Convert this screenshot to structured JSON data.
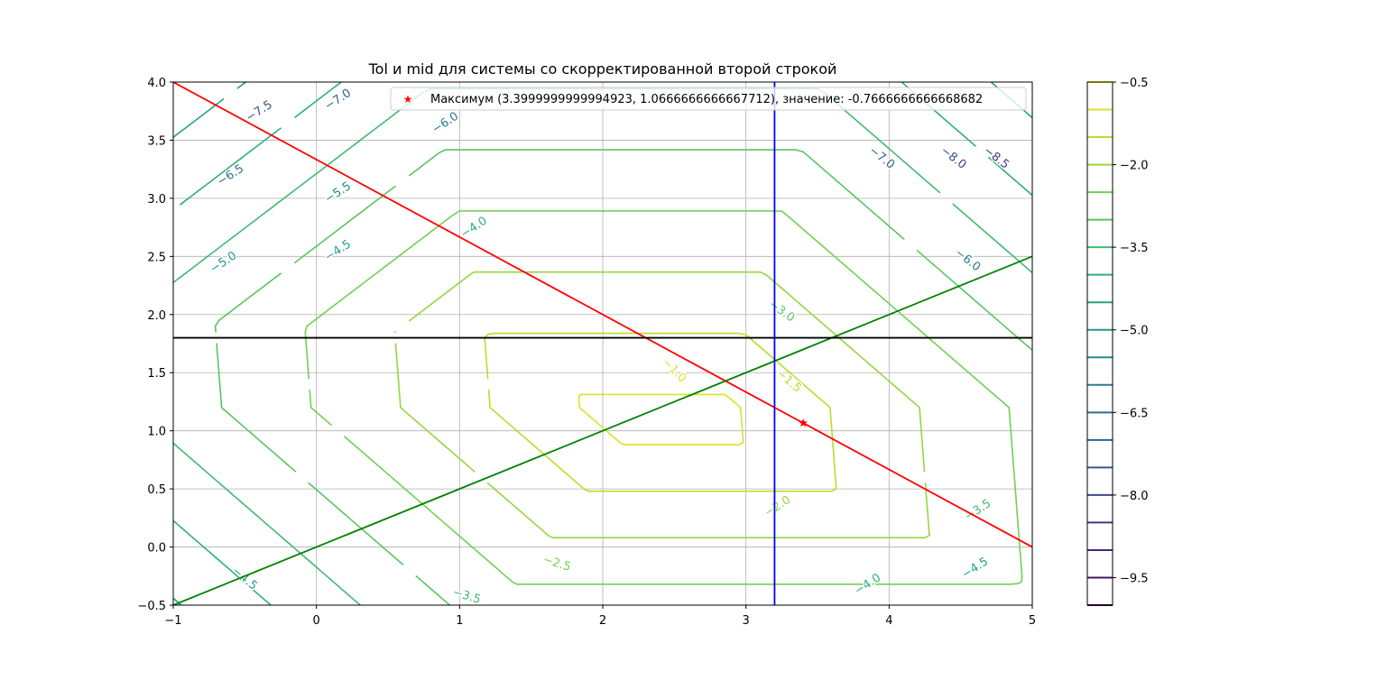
{
  "chart_data": {
    "type": "contour",
    "title": "Tol и mid для системы со скорректированной второй строкой",
    "xlabel": "",
    "ylabel": "",
    "xlim": [
      -1,
      5
    ],
    "ylim": [
      -0.5,
      4.0
    ],
    "x_ticks": [
      -1,
      0,
      1,
      2,
      3,
      4,
      5
    ],
    "x_tick_labels": [
      "−1",
      "0",
      "1",
      "2",
      "3",
      "4",
      "5"
    ],
    "y_ticks": [
      -0.5,
      0.0,
      0.5,
      1.0,
      1.5,
      2.0,
      2.5,
      3.0,
      3.5,
      4.0
    ],
    "y_tick_labels": [
      "−0.5",
      "0.0",
      "0.5",
      "1.0",
      "1.5",
      "2.0",
      "2.5",
      "3.0",
      "3.5",
      "4.0"
    ],
    "grid": true,
    "colormap": "viridis",
    "contour_levels": [
      -0.5,
      -1.0,
      -1.5,
      -2.0,
      -2.5,
      -3.0,
      -3.5,
      -4.0,
      -4.5,
      -5.0,
      -5.5,
      -6.0,
      -6.5,
      -7.0,
      -7.5,
      -8.0,
      -8.5,
      -9.0,
      -9.5,
      -10.0
    ],
    "contour_labels": [
      {
        "text": "−7.5",
        "x": -0.4,
        "y": 3.75,
        "angle": -33
      },
      {
        "text": "−7.0",
        "x": 0.15,
        "y": 3.85,
        "angle": -33
      },
      {
        "text": "−6.0",
        "x": 0.9,
        "y": 3.65,
        "angle": -33
      },
      {
        "text": "−6.5",
        "x": -0.6,
        "y": 3.2,
        "angle": -33
      },
      {
        "text": "−5.5",
        "x": 0.15,
        "y": 3.05,
        "angle": -33
      },
      {
        "text": "−4.0",
        "x": 1.1,
        "y": 2.75,
        "angle": -33
      },
      {
        "text": "−5.0",
        "x": -0.65,
        "y": 2.45,
        "angle": -33
      },
      {
        "text": "−4.5",
        "x": 0.15,
        "y": 2.55,
        "angle": -33
      },
      {
        "text": "−3.0",
        "x": 3.25,
        "y": 2.03,
        "angle": 35
      },
      {
        "text": "−1.0",
        "x": 2.5,
        "y": 1.52,
        "angle": 45
      },
      {
        "text": "−1.5",
        "x": 3.3,
        "y": 1.43,
        "angle": 40
      },
      {
        "text": "−7.0",
        "x": 3.95,
        "y": 3.35,
        "angle": 38
      },
      {
        "text": "−8.0",
        "x": 4.45,
        "y": 3.35,
        "angle": 38
      },
      {
        "text": "−8.5",
        "x": 4.75,
        "y": 3.35,
        "angle": 38
      },
      {
        "text": "−6.0",
        "x": 4.55,
        "y": 2.47,
        "angle": 38
      },
      {
        "text": "−2.0",
        "x": 3.22,
        "y": 0.35,
        "angle": -33
      },
      {
        "text": "−2.5",
        "x": 1.68,
        "y": -0.14,
        "angle": 17
      },
      {
        "text": "−3.5",
        "x": 1.05,
        "y": -0.42,
        "angle": 17
      },
      {
        "text": "−4.5",
        "x": -0.5,
        "y": -0.27,
        "angle": 40
      },
      {
        "text": "−3.5",
        "x": 4.62,
        "y": 0.32,
        "angle": -33
      },
      {
        "text": "−4.0",
        "x": 3.85,
        "y": -0.32,
        "angle": -33
      },
      {
        "text": "−4.5",
        "x": 4.6,
        "y": -0.18,
        "angle": -33
      }
    ],
    "colorbar": {
      "ticks": [
        -0.5,
        -2.0,
        -3.5,
        -5.0,
        -6.5,
        -8.0,
        -9.5
      ],
      "tick_labels": [
        "−0.5",
        "−2.0",
        "−3.5",
        "−5.0",
        "−6.5",
        "−8.0",
        "−9.5"
      ]
    },
    "lines": [
      {
        "color": "#ff0000",
        "x": [
          -1,
          5
        ],
        "y": [
          4.0,
          0.0
        ]
      },
      {
        "color": "#008000",
        "x": [
          -1,
          5
        ],
        "y": [
          -0.5,
          2.5
        ]
      },
      {
        "color": "#0000ff",
        "x": [
          3.2,
          3.2
        ],
        "y": [
          -0.5,
          4.0
        ]
      },
      {
        "color": "#000000",
        "x": [
          -1,
          5
        ],
        "y": [
          1.8,
          1.8
        ]
      }
    ],
    "marker": {
      "x": 3.3999999999994923,
      "y": 1.0666666666667712,
      "color": "#ff0000",
      "symbol": "star"
    },
    "legend": {
      "placement": "top-right",
      "entries": [
        {
          "label": "Максимум (3.3999999999994923, 1.0666666666667712), значение: -0.7666666666668682",
          "color": "#ff0000",
          "symbol": "star"
        }
      ]
    }
  }
}
